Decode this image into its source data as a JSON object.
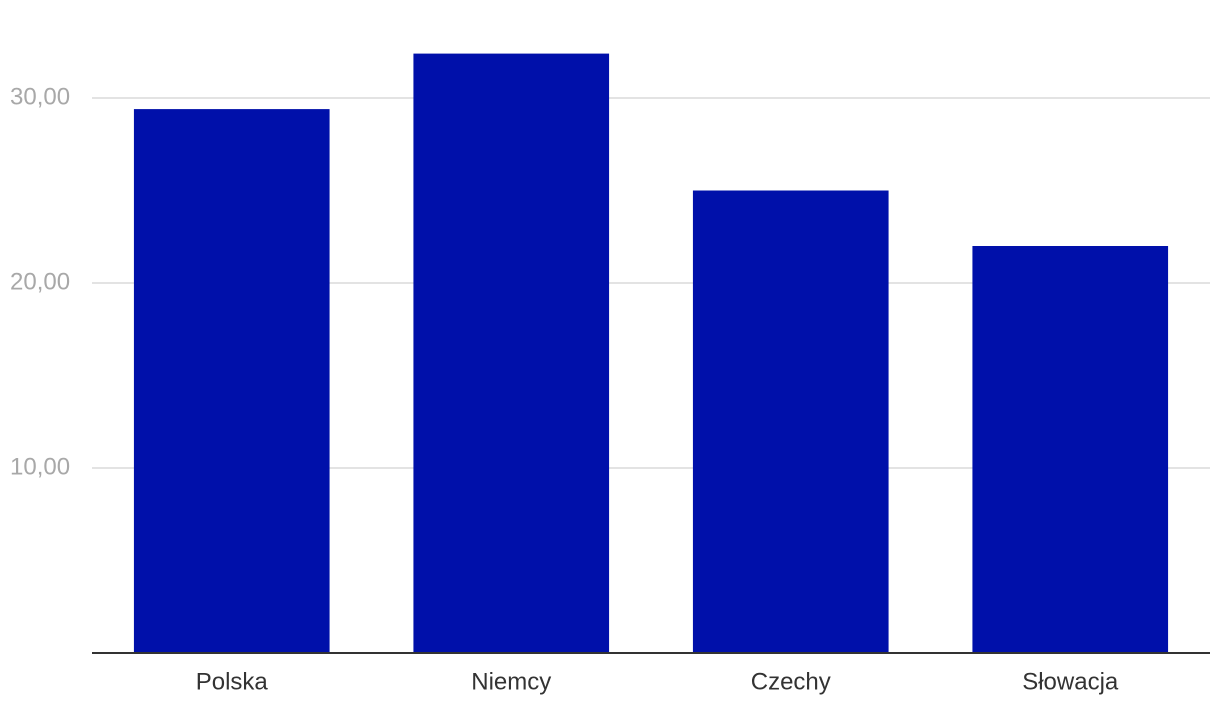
{
  "chart_data": {
    "type": "bar",
    "categories": [
      "Polska",
      "Niemcy",
      "Czechy",
      "Słowacja"
    ],
    "values": [
      29.4,
      32.4,
      25.0,
      22.0
    ],
    "color": "#0010aa",
    "ylim": [
      0,
      35
    ],
    "yticks": [
      {
        "value": 10,
        "label": "10,00"
      },
      {
        "value": 20,
        "label": "20,00"
      },
      {
        "value": 30,
        "label": "30,00"
      }
    ],
    "grid": true
  }
}
